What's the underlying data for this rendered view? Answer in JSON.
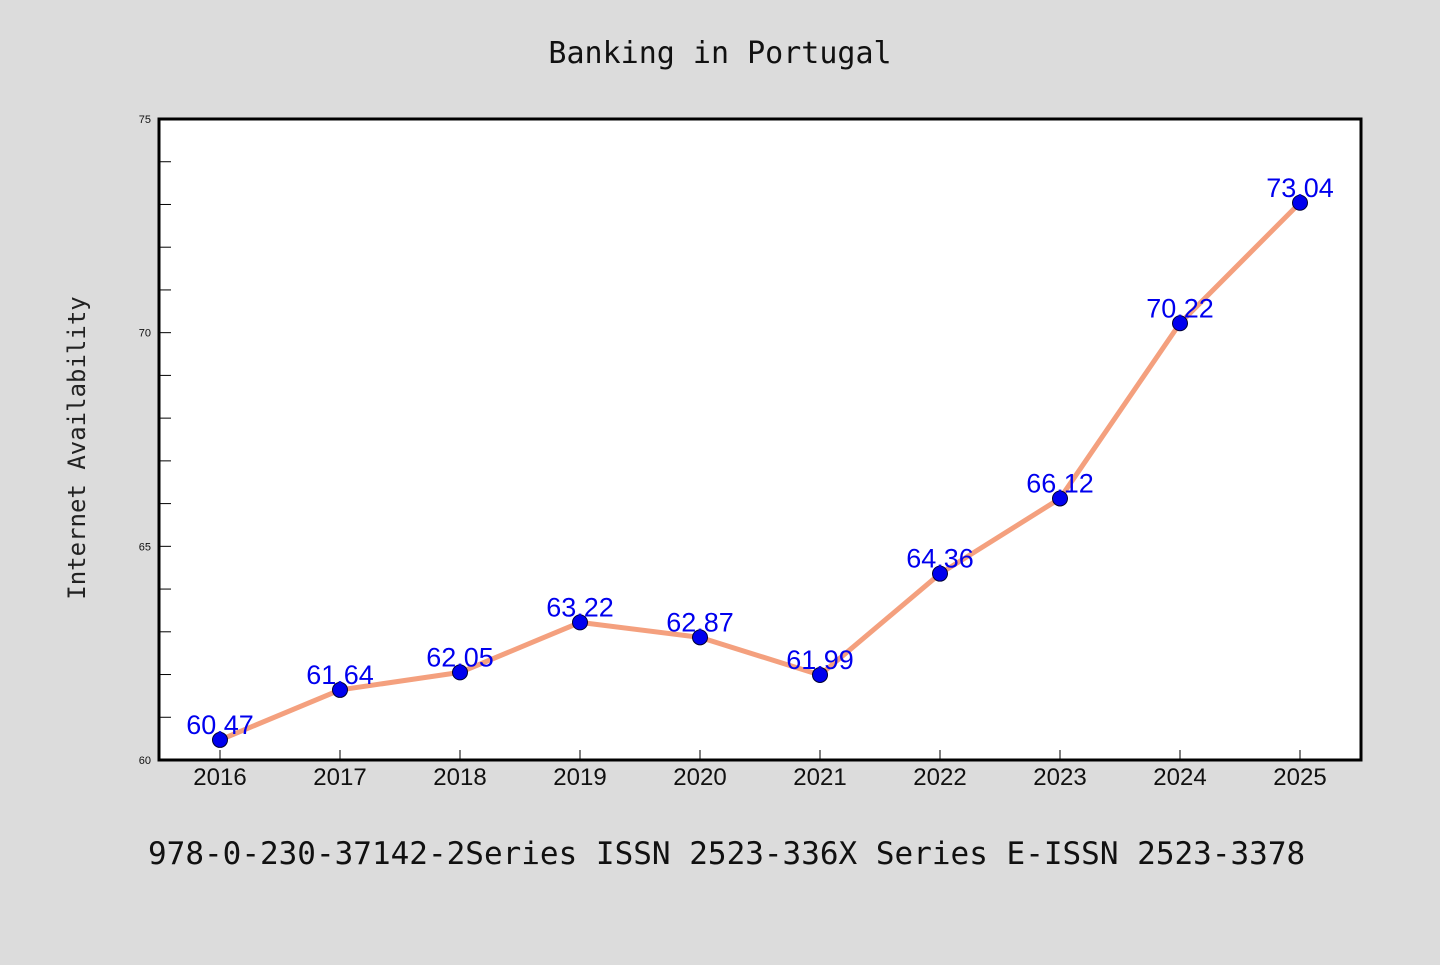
{
  "chart_data": {
    "type": "line",
    "title": "Banking in Portugal",
    "xlabel": "",
    "ylabel": "Internet Availability",
    "categories": [
      "2016",
      "2017",
      "2018",
      "2019",
      "2020",
      "2021",
      "2022",
      "2023",
      "2024",
      "2025"
    ],
    "series": [
      {
        "values": [
          60.47,
          61.64,
          62.05,
          63.22,
          62.87,
          61.99,
          64.36,
          66.12,
          70.22,
          73.04
        ]
      }
    ],
    "data_labels": [
      "60.47",
      "61.64",
      "62.05",
      "63.22",
      "62.87",
      "61.99",
      "64.36",
      "66.12",
      "70.22",
      "73.04"
    ],
    "ylim": [
      60,
      75
    ],
    "yticks": [
      60,
      65,
      70,
      75
    ],
    "ytick_labels": [
      "60",
      "65",
      "70",
      "75"
    ],
    "grid": false,
    "legend": "none"
  },
  "footer": {
    "text": "978-0-230-37142-2Series ISSN 2523-336X Series E-ISSN 2523-3378"
  },
  "colors": {
    "background": "#dcdcdc",
    "plot_background": "#ffffff",
    "line": "#f4a07e",
    "marker": "#0000ee",
    "label": "#0000ee"
  }
}
